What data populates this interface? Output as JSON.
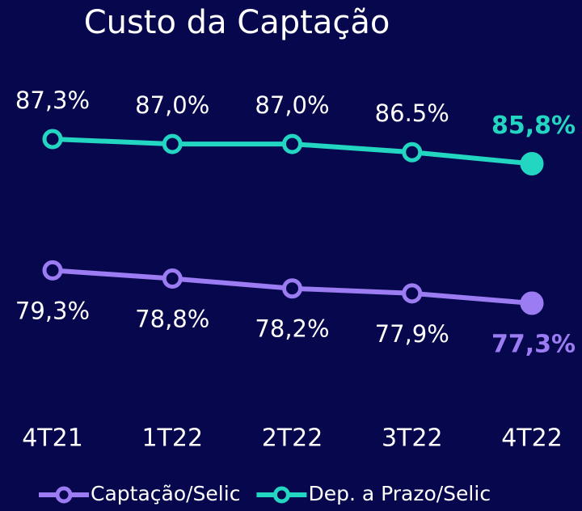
{
  "chart_data": {
    "type": "line",
    "title": "Custo da Captação",
    "categories": [
      "4T21",
      "1T22",
      "2T22",
      "3T22",
      "4T22"
    ],
    "series": [
      {
        "name": "Captação/Selic",
        "color": "#9b7cf2",
        "values": [
          79.3,
          78.8,
          78.2,
          77.9,
          77.3
        ],
        "value_labels": [
          "79,3%",
          "78,8%",
          "78,2%",
          "77,9%",
          "77,3%"
        ]
      },
      {
        "name": "Dep. a Prazo/Selic",
        "color": "#22d6c2",
        "values": [
          87.3,
          87.0,
          87.0,
          86.5,
          85.8
        ],
        "value_labels": [
          "87,3%",
          "87,0%",
          "87,0%",
          "86.5%",
          "85,8%"
        ]
      }
    ],
    "legend": "bottom"
  }
}
